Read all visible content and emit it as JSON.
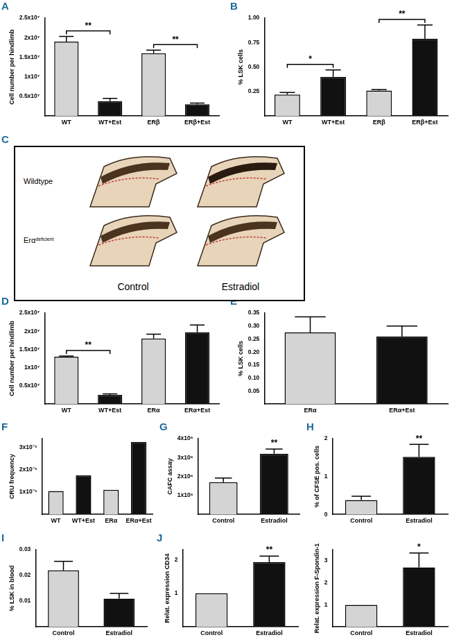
{
  "chart_data": [
    {
      "panel": "A",
      "type": "bar",
      "y_label": "Cell number per hindlimb",
      "grid": false,
      "categories": [
        "WT",
        "WT+Est",
        "ERβ",
        "ERβ+Est"
      ],
      "values": [
        19000000,
        3800000,
        16000000,
        3000000
      ],
      "errors": [
        1300000,
        700000,
        800000,
        300000
      ],
      "colors": [
        "#d4d4d4",
        "#111111",
        "#d4d4d4",
        "#111111"
      ],
      "ylim": [
        0,
        25000000
      ],
      "yticks": [
        {
          "value": 5000000,
          "label": "0.5x10⁷"
        },
        {
          "value": 10000000,
          "label": "1x10⁷"
        },
        {
          "value": 15000000,
          "label": "1.5x10⁷"
        },
        {
          "value": 20000000,
          "label": "2x10⁷"
        },
        {
          "value": 25000000,
          "label": "2.5x10⁷"
        }
      ],
      "annotations": [
        {
          "text": "**",
          "between": [
            "WT",
            "WT+Est"
          ]
        },
        {
          "text": "**",
          "between": [
            "ERβ",
            "ERβ+Est"
          ]
        }
      ]
    },
    {
      "panel": "B",
      "type": "bar",
      "y_label": "% LSK cells",
      "grid": false,
      "categories": [
        "WT",
        "WT+Est",
        "ERβ",
        "ERβ+Est"
      ],
      "values": [
        0.22,
        0.4,
        0.26,
        0.79
      ],
      "errors": [
        0.02,
        0.07,
        0.01,
        0.14
      ],
      "colors": [
        "#d4d4d4",
        "#111111",
        "#d4d4d4",
        "#111111"
      ],
      "ylim": [
        0,
        1
      ],
      "yticks": [
        0.25,
        {
          "value": 0.5,
          "label": "0.50"
        },
        0.75,
        {
          "value": 1,
          "label": "1.00"
        }
      ],
      "annotations": [
        {
          "text": "*",
          "between": [
            "WT",
            "WT+Est"
          ]
        },
        {
          "text": "**",
          "between": [
            "ERβ",
            "ERβ+Est"
          ]
        }
      ]
    },
    {
      "panel": "D",
      "type": "bar",
      "y_label": "Cell number per hindlimb",
      "grid": false,
      "categories": [
        "WT",
        "WT+Est",
        "ERα",
        "ERα+Est"
      ],
      "values": [
        13000000,
        2500000,
        18000000,
        19700000
      ],
      "errors": [
        200000,
        300000,
        1200000,
        2000000
      ],
      "colors": [
        "#d4d4d4",
        "#111111",
        "#d4d4d4",
        "#111111"
      ],
      "ylim": [
        0,
        25000000
      ],
      "yticks": [
        {
          "value": 5000000,
          "label": "0.5x10⁷"
        },
        {
          "value": 10000000,
          "label": "1x10⁷"
        },
        {
          "value": 15000000,
          "label": "1.5x10⁷"
        },
        {
          "value": 20000000,
          "label": "2x10⁷"
        },
        {
          "value": 25000000,
          "label": "2.5x10⁷"
        }
      ],
      "annotations": [
        {
          "text": "**",
          "between": [
            "WT",
            "WT+Est"
          ]
        }
      ]
    },
    {
      "panel": "E",
      "type": "bar",
      "y_label": "% LSK cells",
      "grid": false,
      "categories": [
        "ERα",
        "ERα+Est"
      ],
      "values": [
        0.275,
        0.26
      ],
      "errors": [
        0.06,
        0.04
      ],
      "colors": [
        "#d4d4d4",
        "#111111"
      ],
      "ylim": [
        0,
        0.35
      ],
      "yticks": [
        0.05,
        {
          "value": 0.1,
          "label": "0.10"
        },
        0.15,
        {
          "value": 0.2,
          "label": "0.20"
        },
        0.25,
        {
          "value": 0.3,
          "label": "0.30"
        },
        0.35
      ]
    },
    {
      "panel": "F",
      "type": "bar",
      "y_label": "CRU frequency",
      "grid": false,
      "categories": [
        "WT",
        "WT+Est",
        "ERα",
        "ERα+Est"
      ],
      "values": [
        1.05e-05,
        1.75e-05,
        1.1e-05,
        3.25e-05
      ],
      "colors": [
        "#d4d4d4",
        "#111111",
        "#d4d4d4",
        "#111111"
      ],
      "ylim": [
        0,
        3.4e-05
      ],
      "yticks": [
        {
          "value": 1e-05,
          "label": "1x10⁻⁵"
        },
        {
          "value": 2e-05,
          "label": "2x10⁻⁵"
        },
        {
          "value": 3e-05,
          "label": "3x10⁻⁵"
        }
      ]
    },
    {
      "panel": "G",
      "type": "bar",
      "y_label": "CAFC assay",
      "grid": false,
      "categories": [
        "Control",
        "Estradiol"
      ],
      "values": [
        1700000,
        3200000
      ],
      "errors": [
        220000,
        250000
      ],
      "colors": [
        "#d4d4d4",
        "#111111"
      ],
      "ylim": [
        0,
        4000000
      ],
      "yticks": [
        {
          "value": 1000000,
          "label": "1x10⁶"
        },
        {
          "value": 2000000,
          "label": "2x10⁶"
        },
        {
          "value": 3000000,
          "label": "3x10⁶"
        },
        {
          "value": 4000000,
          "label": "4x10⁶"
        }
      ],
      "annotations": [
        {
          "text": "**",
          "above": "Estradiol"
        }
      ]
    },
    {
      "panel": "H",
      "type": "bar",
      "y_label": "% of CFSE pos. cells",
      "grid": false,
      "categories": [
        "Control",
        "Estradiol"
      ],
      "values": [
        0.38,
        1.52
      ],
      "errors": [
        0.1,
        0.33
      ],
      "colors": [
        "#d4d4d4",
        "#111111"
      ],
      "ylim": [
        0,
        2
      ],
      "yticks": [
        0,
        1,
        2
      ],
      "annotations": [
        {
          "text": "**",
          "above": "Estradiol"
        }
      ]
    },
    {
      "panel": "I",
      "type": "bar",
      "y_label": "% LSK in blood",
      "grid": false,
      "categories": [
        "Control",
        "Estradiol"
      ],
      "values": [
        0.022,
        0.011
      ],
      "errors": [
        0.0035,
        0.002
      ],
      "colors": [
        "#d4d4d4",
        "#111111"
      ],
      "ylim": [
        0,
        0.03
      ],
      "yticks": [
        0.01,
        0.02,
        0.03
      ]
    },
    {
      "panel": "J",
      "type": "bar",
      "y_label": "Relat. expression CD34",
      "grid": false,
      "categories": [
        "Control",
        "Estradiol"
      ],
      "values": [
        1,
        1.93
      ],
      "errors": [
        0,
        0.18
      ],
      "colors": [
        "#d4d4d4",
        "#111111"
      ],
      "ylim": [
        0,
        2.3
      ],
      "yticks": [
        1,
        2
      ],
      "annotations": [
        {
          "text": "**",
          "above": "Estradiol"
        }
      ]
    },
    {
      "type": "bar",
      "y_label": "Relat. expression F-Spondin-1",
      "grid": false,
      "categories": [
        "Control",
        "Estradiol"
      ],
      "values": [
        1,
        2.7
      ],
      "errors": [
        0,
        0.65
      ],
      "colors": [
        "#d4d4d4",
        "#111111"
      ],
      "ylim": [
        0,
        3.5
      ],
      "yticks": [
        1,
        2,
        3
      ],
      "annotations": [
        {
          "text": "*",
          "above": "Estradiol"
        }
      ]
    }
  ],
  "image_panel": {
    "panel": "C",
    "row_labels": [
      {
        "text": "Wildtype"
      },
      {
        "text": "Erα",
        "superscript": "deficient"
      }
    ],
    "column_labels": [
      "Control",
      "Estradiol"
    ]
  }
}
